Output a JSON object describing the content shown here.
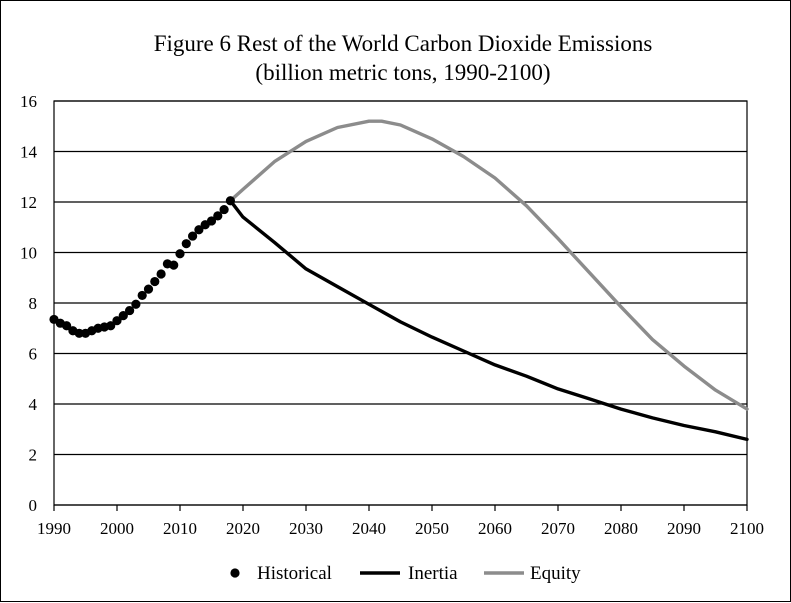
{
  "chart_data": {
    "type": "line",
    "title": "Figure 6 Rest of the World Carbon Dioxide Emissions",
    "subtitle": "(billion metric tons, 1990-2100)",
    "xlabel": "",
    "ylabel": "",
    "xlim": [
      1990,
      2100
    ],
    "ylim": [
      0,
      16
    ],
    "x_ticks": [
      1990,
      2000,
      2010,
      2020,
      2030,
      2040,
      2050,
      2060,
      2070,
      2080,
      2090,
      2100
    ],
    "y_ticks": [
      0,
      2,
      4,
      6,
      8,
      10,
      12,
      14,
      16
    ],
    "grid": "horizontal",
    "legend_position": "bottom",
    "series": [
      {
        "name": "Historical",
        "style": "markers",
        "color": "#000000",
        "x": [
          1990,
          1991,
          1992,
          1993,
          1994,
          1995,
          1996,
          1997,
          1998,
          1999,
          2000,
          2001,
          2002,
          2003,
          2004,
          2005,
          2006,
          2007,
          2008,
          2009,
          2010,
          2011,
          2012,
          2013,
          2014,
          2015,
          2016,
          2017,
          2018
        ],
        "values": [
          7.35,
          7.2,
          7.1,
          6.9,
          6.8,
          6.8,
          6.9,
          7.0,
          7.05,
          7.1,
          7.3,
          7.5,
          7.7,
          7.95,
          8.3,
          8.55,
          8.85,
          9.15,
          9.55,
          9.5,
          9.95,
          10.35,
          10.65,
          10.9,
          11.1,
          11.25,
          11.45,
          11.7,
          12.05
        ]
      },
      {
        "name": "Inertia",
        "style": "line",
        "color": "#000000",
        "x": [
          2018,
          2020,
          2025,
          2030,
          2035,
          2040,
          2045,
          2050,
          2055,
          2060,
          2065,
          2070,
          2075,
          2080,
          2085,
          2090,
          2095,
          2100
        ],
        "values": [
          12.05,
          11.4,
          10.4,
          9.35,
          8.65,
          7.95,
          7.25,
          6.65,
          6.1,
          5.55,
          5.1,
          4.6,
          4.2,
          3.8,
          3.45,
          3.15,
          2.9,
          2.6
        ]
      },
      {
        "name": "Equity",
        "style": "line",
        "color": "#8c8c8c",
        "x": [
          2018,
          2020,
          2025,
          2030,
          2035,
          2040,
          2042,
          2045,
          2050,
          2055,
          2060,
          2065,
          2070,
          2075,
          2080,
          2085,
          2090,
          2095,
          2100
        ],
        "values": [
          12.05,
          12.5,
          13.6,
          14.4,
          14.95,
          15.2,
          15.2,
          15.05,
          14.5,
          13.8,
          12.95,
          11.85,
          10.55,
          9.2,
          7.85,
          6.55,
          5.5,
          4.55,
          3.8
        ]
      }
    ]
  }
}
